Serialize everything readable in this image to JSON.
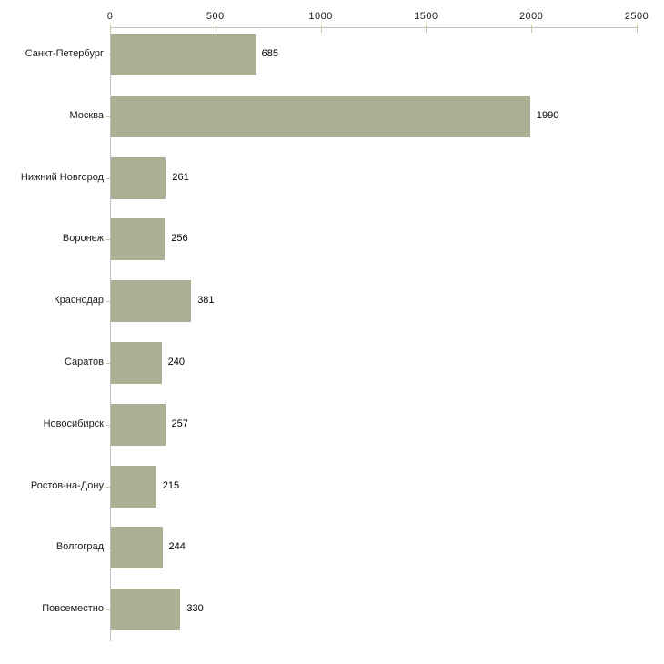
{
  "chart_data": {
    "type": "bar",
    "orientation": "horizontal",
    "title": "",
    "xlabel": "",
    "ylabel": "",
    "categories": [
      "Санкт-Петербург",
      "Москва",
      "Нижний Новгород",
      "Воронеж",
      "Краснодар",
      "Саратов",
      "Новосибирск",
      "Ростов-на-Дону",
      "Волгоград",
      "Повсеместно"
    ],
    "values": [
      685,
      1990,
      261,
      256,
      381,
      240,
      257,
      215,
      244,
      330
    ],
    "value_labels": [
      "685",
      "1990",
      "261",
      "256",
      "381",
      "240",
      "257",
      "215",
      "244",
      "330"
    ],
    "xlim": [
      0,
      2500
    ],
    "x_ticks": [
      0,
      500,
      1000,
      1500,
      2000,
      2500
    ],
    "x_tick_labels": [
      "0",
      "500",
      "1000",
      "1500",
      "2000",
      "2500"
    ],
    "x_axis_position": "top",
    "grid": false,
    "legend": null,
    "colors": {
      "bar": "#abb095",
      "axis_line": "#c0c0c0",
      "tick_mark": "#c9c9a2",
      "text": "#1c1c1c"
    }
  }
}
